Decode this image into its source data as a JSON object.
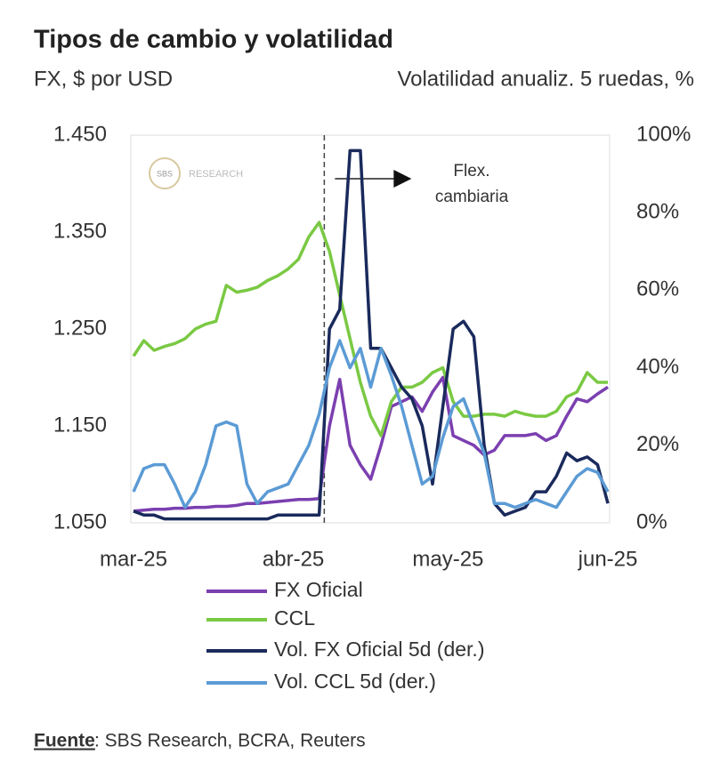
{
  "chart_data": {
    "type": "line",
    "title": "Tipos de cambio y volatilidad",
    "ylabel": "FX, $ por USD",
    "y2label": "Volatilidad anualiz. 5 ruedas, %",
    "x": [
      0,
      2,
      4,
      6,
      8,
      10,
      12,
      14,
      16,
      18,
      20,
      22,
      24,
      26,
      28,
      30,
      32,
      34,
      36,
      38,
      40,
      42,
      44,
      46,
      48,
      50,
      52,
      54,
      56,
      58,
      60,
      62,
      64,
      66,
      68,
      70,
      72,
      74,
      76,
      78,
      80,
      82,
      84,
      86,
      88,
      90,
      92
    ],
    "xlim": [
      0,
      92
    ],
    "xticks": [
      {
        "value": 0,
        "label": "mar-25"
      },
      {
        "value": 31,
        "label": "abr-25"
      },
      {
        "value": 61,
        "label": "may-25"
      },
      {
        "value": 92,
        "label": "jun-25"
      }
    ],
    "ylim": [
      1050,
      1450
    ],
    "yticks": [
      {
        "value": 1050,
        "label": "1.050"
      },
      {
        "value": 1150,
        "label": "1.150"
      },
      {
        "value": 1250,
        "label": "1.250"
      },
      {
        "value": 1350,
        "label": "1.350"
      },
      {
        "value": 1450,
        "label": "1.450"
      }
    ],
    "y2lim": [
      0,
      100
    ],
    "y2ticks": [
      {
        "value": 0,
        "label": "0%"
      },
      {
        "value": 20,
        "label": "20%"
      },
      {
        "value": 40,
        "label": "40%"
      },
      {
        "value": 60,
        "label": "60%"
      },
      {
        "value": 80,
        "label": "80%"
      },
      {
        "value": 100,
        "label": "100%"
      }
    ],
    "series": [
      {
        "name": "FX Oficial",
        "color": "#7b3fb0",
        "values": [
          1062,
          1063,
          1064,
          1064,
          1065,
          1065,
          1066,
          1066,
          1067,
          1067,
          1068,
          1070,
          1070,
          1071,
          1072,
          1073,
          1074,
          1074,
          1075,
          1150,
          1198,
          1130,
          1110,
          1095,
          1130,
          1170,
          1175,
          1180,
          1165,
          1185,
          1200,
          1140,
          1135,
          1130,
          1120,
          1125,
          1140,
          1140,
          1140,
          1142,
          1135,
          1140,
          1160,
          1178,
          1175,
          1183,
          1190
        ]
      },
      {
        "name": "CCL",
        "color": "#7ac943",
        "values": [
          1222,
          1238,
          1228,
          1232,
          1235,
          1240,
          1250,
          1255,
          1258,
          1295,
          1288,
          1290,
          1293,
          1300,
          1305,
          1312,
          1322,
          1345,
          1360,
          1330,
          1285,
          1240,
          1195,
          1160,
          1140,
          1175,
          1190,
          1190,
          1195,
          1205,
          1210,
          1175,
          1160,
          1160,
          1162,
          1162,
          1160,
          1165,
          1162,
          1160,
          1160,
          1165,
          1180,
          1185,
          1205,
          1195,
          1195
        ]
      },
      {
        "name": "Vol. FX Oficial 5d (der.)",
        "color": "#1a2a5c",
        "axis": "y2",
        "values": [
          3,
          2,
          2,
          1,
          1,
          1,
          1,
          1,
          1,
          1,
          1,
          1,
          1,
          1,
          2,
          2,
          2,
          2,
          2,
          50,
          55,
          96,
          96,
          45,
          45,
          40,
          35,
          32,
          25,
          10,
          30,
          50,
          52,
          48,
          20,
          5,
          2,
          3,
          4,
          8,
          8,
          12,
          18,
          16,
          17,
          15,
          5
        ]
      },
      {
        "name": "Vol. CCL 5d (der.)",
        "color": "#5b9bd5",
        "axis": "y2",
        "values": [
          8,
          14,
          15,
          15,
          10,
          4,
          8,
          15,
          25,
          26,
          25,
          10,
          5,
          8,
          9,
          10,
          15,
          20,
          28,
          40,
          47,
          40,
          45,
          35,
          45,
          38,
          30,
          20,
          10,
          12,
          22,
          30,
          32,
          25,
          18,
          5,
          5,
          4,
          5,
          6,
          5,
          4,
          8,
          12,
          14,
          13,
          8
        ]
      }
    ],
    "event_x": 37,
    "annotation": [
      "Flex.",
      "cambiaria"
    ],
    "watermark": [
      "SBS",
      "RESEARCH"
    ],
    "source_label": "Fuente",
    "source": ": SBS Research, BCRA, Reuters"
  }
}
